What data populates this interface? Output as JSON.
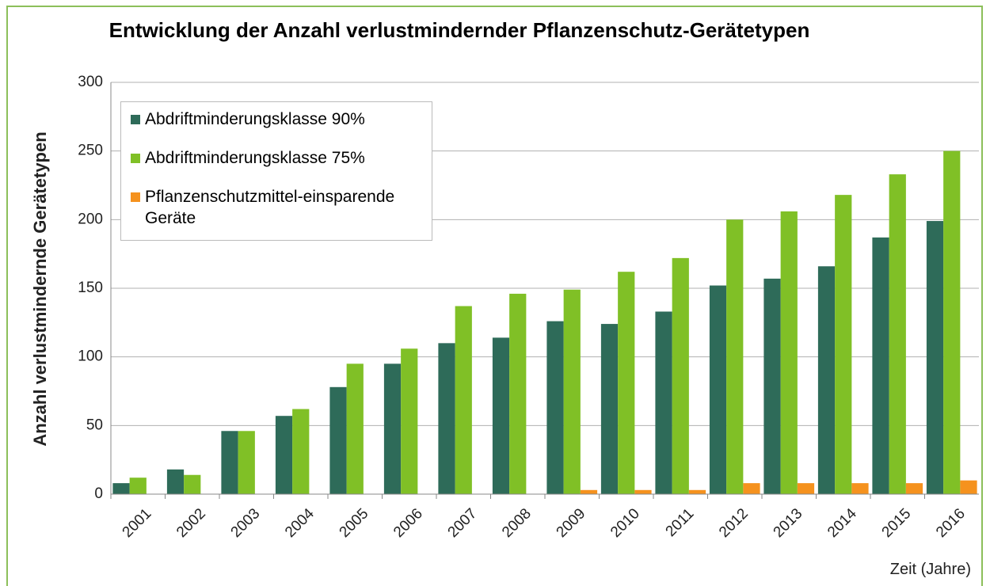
{
  "chart_data": {
    "type": "bar",
    "title": "Entwicklung der Anzahl verlustmindernder Pflanzenschutz-Gerätetypen",
    "y_label": "Anzahl verlustmindernde Gerätetypen",
    "x_label": "Zeit (Jahre)",
    "categories": [
      "2001",
      "2002",
      "2003",
      "2004",
      "2005",
      "2006",
      "2007",
      "2008",
      "2009",
      "2010",
      "2011",
      "2012",
      "2013",
      "2014",
      "2015",
      "2016"
    ],
    "series": [
      {
        "name": "Abdriftminderungsklasse 90%",
        "color": "#2e6b59",
        "values": [
          8,
          18,
          46,
          57,
          78,
          95,
          110,
          114,
          126,
          124,
          133,
          152,
          157,
          166,
          187,
          199
        ]
      },
      {
        "name": "Abdriftminderungsklasse 75%",
        "color": "#80c026",
        "values": [
          12,
          14,
          46,
          62,
          95,
          106,
          137,
          146,
          149,
          162,
          172,
          200,
          206,
          218,
          233,
          250
        ]
      },
      {
        "name": "Pflanzenschutzmittel-einsparende Geräte",
        "color": "#f5921e",
        "values": [
          0,
          0,
          0,
          0,
          0,
          0,
          0,
          0,
          3,
          3,
          3,
          8,
          8,
          8,
          8,
          10
        ]
      }
    ],
    "ylim": [
      0,
      300
    ],
    "yticks": [
      0,
      50,
      100,
      150,
      200,
      250,
      300
    ],
    "grid": true,
    "legend": "upper left"
  }
}
